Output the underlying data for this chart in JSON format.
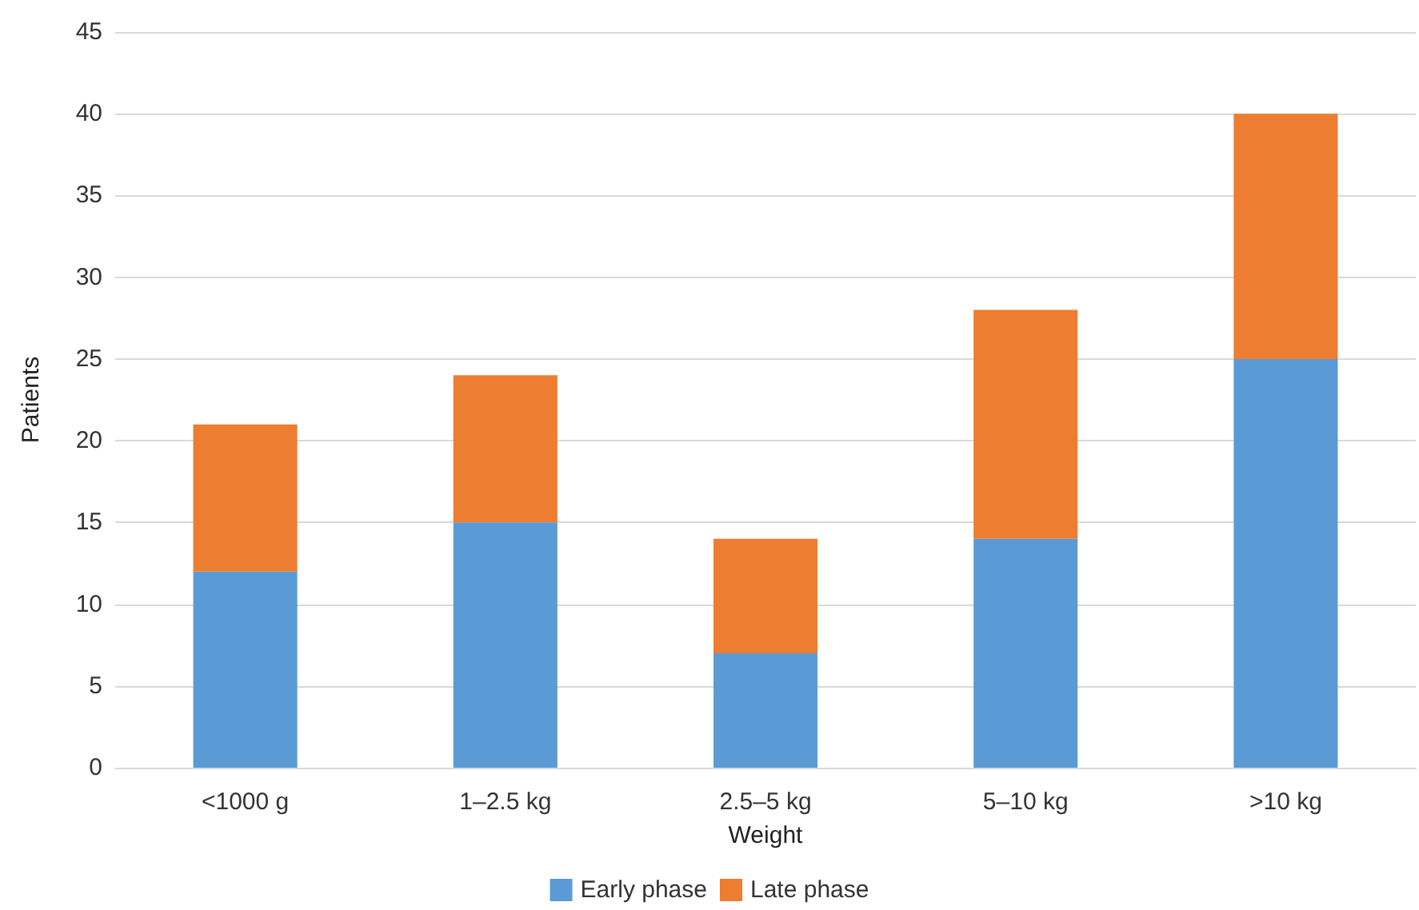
{
  "chart_data": {
    "type": "bar",
    "stacked": true,
    "xlabel": "Weight",
    "ylabel": "Patients",
    "categories": [
      "<1000 g",
      "1–2.5 kg",
      "2.5–5 kg",
      "5–10 kg",
      ">10 kg"
    ],
    "series": [
      {
        "name": "Early phase",
        "color": "#5b9bd5",
        "values": [
          12,
          15,
          7,
          14,
          25
        ]
      },
      {
        "name": "Late phase",
        "color": "#ed7d31",
        "values": [
          9,
          9,
          7,
          14,
          15
        ]
      }
    ],
    "ylim": [
      0,
      45
    ],
    "yticks": [
      0,
      5,
      10,
      15,
      20,
      25,
      30,
      35,
      40,
      45
    ],
    "grid": "y",
    "legend": "bottom"
  }
}
